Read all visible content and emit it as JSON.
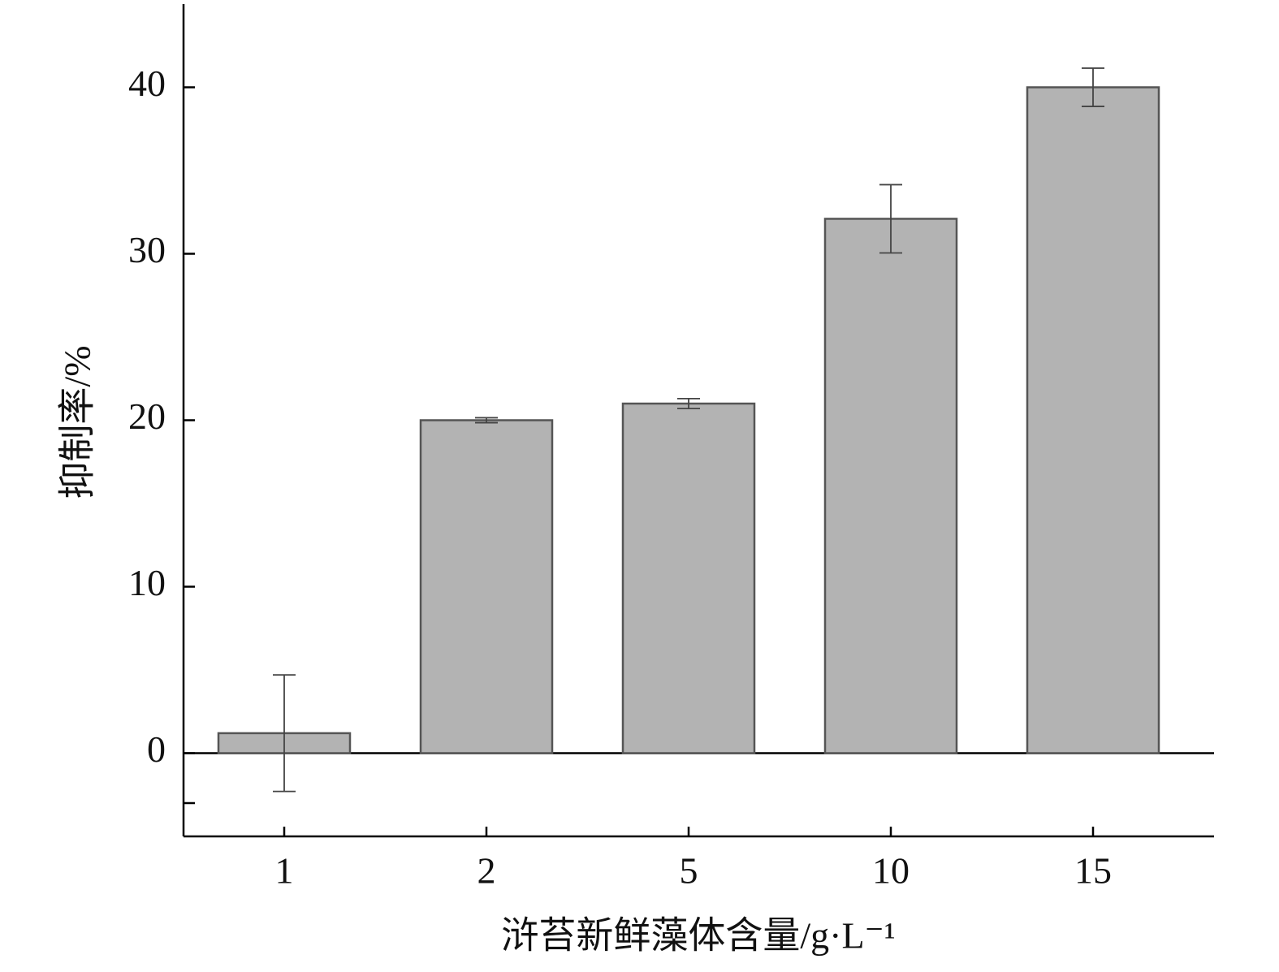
{
  "chart_data": {
    "type": "bar",
    "xlabel": "浒苔新鲜藻体含量/g·L⁻¹",
    "ylabel": "抑制率/%",
    "categories": [
      "1",
      "2",
      "5",
      "10",
      "15"
    ],
    "values": [
      1.2,
      20.0,
      21.0,
      32.1,
      40.0
    ],
    "errors": [
      3.5,
      0.15,
      0.3,
      2.05,
      1.15
    ],
    "color": "#b3b3b3",
    "ylim": [
      -5,
      45
    ],
    "yticks": [
      0,
      10,
      20,
      30,
      40
    ],
    "minor_yticks": [
      -3
    ],
    "grid": false
  }
}
